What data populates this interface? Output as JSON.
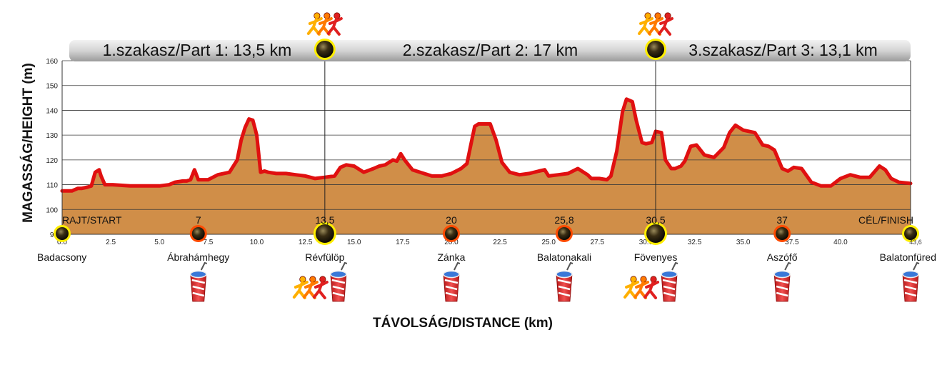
{
  "chart_data": {
    "type": "area",
    "xlabel": "TÁVOLSÁG/DISTANCE (km)",
    "ylabel": "MAGASSÁG/HEIGHT (m)",
    "xlim": [
      0,
      43.6
    ],
    "ylim": [
      90,
      160
    ],
    "x_ticks": [
      0.0,
      2.5,
      5.0,
      7.5,
      10.0,
      12.5,
      15.0,
      17.5,
      20.0,
      22.5,
      25.0,
      27.5,
      30.0,
      32.5,
      35.0,
      37.5,
      40.0
    ],
    "x_tick_labels": [
      "0.0",
      "2.5",
      "5.0",
      "7.5",
      "10.0",
      "12.5",
      "15.0",
      "17.5",
      "20.0",
      "22.5",
      "25.0",
      "27.5",
      "30.0",
      "32.5",
      "35.0",
      "37.5",
      "40.0"
    ],
    "y_ticks": [
      90,
      100,
      110,
      120,
      130,
      140,
      150,
      160
    ],
    "grid": true,
    "fill_color": "#d08e48",
    "line_color": "#e01010",
    "x": [
      0,
      0.5,
      0.8,
      1.0,
      1.3,
      1.5,
      1.7,
      1.9,
      2.0,
      2.2,
      2.6,
      3.5,
      5.0,
      5.5,
      5.8,
      6.2,
      6.4,
      6.6,
      6.8,
      7.0,
      7.5,
      8.0,
      8.6,
      9.0,
      9.2,
      9.4,
      9.6,
      9.8,
      10.0,
      10.2,
      10.4,
      10.6,
      11.0,
      11.5,
      12.0,
      12.5,
      13.0,
      13.5,
      14.0,
      14.3,
      14.6,
      15.0,
      15.5,
      16.0,
      16.3,
      16.6,
      17.0,
      17.2,
      17.4,
      17.6,
      17.8,
      18.0,
      18.4,
      19.0,
      19.5,
      20.0,
      20.5,
      20.8,
      21.0,
      21.2,
      21.4,
      21.6,
      22.0,
      22.3,
      22.6,
      23.0,
      23.5,
      24.0,
      24.5,
      24.8,
      25.0,
      25.5,
      26.0,
      26.5,
      27.0,
      27.2,
      27.6,
      28.0,
      28.2,
      28.5,
      28.8,
      29.0,
      29.3,
      29.5,
      29.8,
      30.0,
      30.3,
      30.5,
      30.8,
      31.0,
      31.3,
      31.5,
      31.8,
      32.0,
      32.3,
      32.6,
      33.0,
      33.5,
      34.0,
      34.3,
      34.6,
      35.0,
      35.3,
      35.6,
      36.0,
      36.3,
      36.6,
      37.0,
      37.3,
      37.6,
      38.0,
      38.5,
      39.0,
      39.5,
      40.0,
      40.5,
      41.0,
      41.5,
      42.0,
      42.3,
      42.6,
      43.0,
      43.6
    ],
    "y": [
      107.5,
      107.5,
      108.5,
      108.5,
      109.0,
      109.5,
      115.0,
      116.0,
      113.5,
      110.0,
      110.0,
      109.5,
      109.5,
      110.0,
      111.0,
      111.5,
      111.5,
      112.0,
      116.0,
      112.0,
      112.0,
      114.0,
      115.0,
      120.0,
      128.0,
      133.0,
      136.5,
      136.0,
      130.0,
      115.0,
      115.5,
      115.0,
      114.5,
      114.5,
      114.0,
      113.5,
      112.5,
      113.0,
      113.5,
      117.0,
      118.0,
      117.5,
      115.0,
      116.5,
      117.5,
      118.0,
      120.0,
      119.5,
      122.5,
      120.0,
      118.0,
      116.0,
      115.0,
      113.5,
      113.5,
      114.5,
      116.5,
      118.5,
      126.0,
      133.5,
      134.5,
      134.5,
      134.5,
      128.0,
      119.0,
      115.0,
      114.0,
      114.5,
      115.5,
      116.0,
      113.5,
      114.0,
      114.5,
      116.5,
      114.0,
      112.5,
      112.5,
      112.0,
      113.5,
      123.5,
      139.5,
      144.5,
      143.5,
      136.0,
      127.0,
      126.5,
      127.0,
      131.5,
      131.0,
      120.0,
      116.5,
      116.5,
      117.5,
      119.5,
      125.5,
      126.0,
      122.0,
      121.0,
      125.0,
      131.0,
      134.0,
      132.0,
      131.5,
      131.0,
      126.0,
      125.5,
      124.0,
      116.5,
      115.5,
      117.0,
      116.5,
      111.0,
      109.5,
      109.5,
      112.5,
      114.0,
      113.0,
      113.0,
      117.5,
      116.0,
      112.5,
      111.0,
      110.5
    ],
    "sections": [
      {
        "label": "1.szakasz/Part 1: 13,5 km"
      },
      {
        "label": "2.szakasz/Part 2:  17 km"
      },
      {
        "label": "3.szakasz/Part 3: 13,1 km"
      }
    ],
    "section_boundaries_km": [
      13.5,
      30.5
    ],
    "checkpoints": [
      {
        "km": 0,
        "km_label": "RAJT/START",
        "place": "Badacsony",
        "style": "start",
        "drink": false,
        "runners": false
      },
      {
        "km": 7,
        "km_label": "7",
        "place": "Ábrahámhegy",
        "style": "aid",
        "drink": true,
        "runners": false
      },
      {
        "km": 13.5,
        "km_label": "13,5",
        "place": "Révfülöp",
        "style": "exchange",
        "drink": true,
        "runners": true
      },
      {
        "km": 20,
        "km_label": "20",
        "place": "Zánka",
        "style": "aid",
        "drink": true,
        "runners": false
      },
      {
        "km": 25.8,
        "km_label": "25,8",
        "place": "Balatonakali",
        "style": "aid",
        "drink": true,
        "runners": false
      },
      {
        "km": 30.5,
        "km_label": "30,5",
        "place": "Fövenyes",
        "style": "exchange",
        "drink": true,
        "runners": true
      },
      {
        "km": 37,
        "km_label": "37",
        "place": "Aszófő",
        "style": "aid",
        "drink": true,
        "runners": false
      },
      {
        "km": 43.6,
        "km_label": "CÉL/FINISH",
        "place": "Balatonfüred",
        "style": "finish",
        "drink": true,
        "runners": false,
        "extra_label": "43,6"
      }
    ]
  }
}
